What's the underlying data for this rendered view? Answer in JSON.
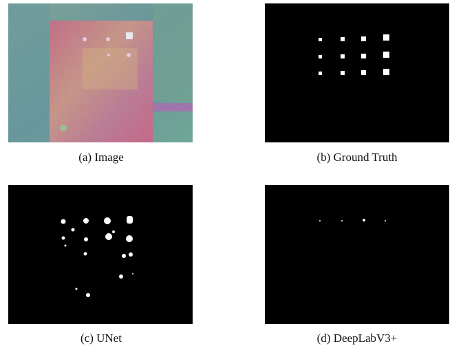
{
  "figure": {
    "panels": [
      {
        "caption": "(a) Image"
      },
      {
        "caption": "(b) Ground Truth"
      },
      {
        "caption": "(c) UNet"
      },
      {
        "caption": "(d) DeepLabV3+"
      }
    ]
  }
}
